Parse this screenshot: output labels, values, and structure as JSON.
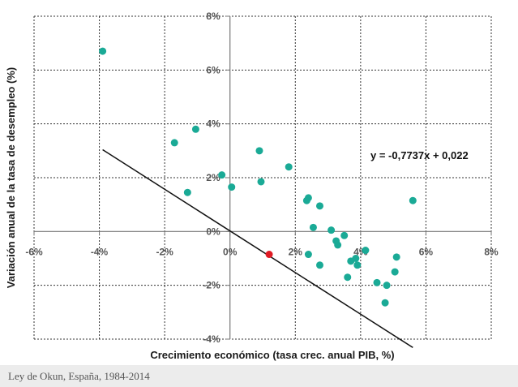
{
  "chart_data": {
    "type": "scatter",
    "xlabel": "Crecimiento económico (tasa crec. anual PIB, %)",
    "ylabel": "Variación anual de la tasa de desempleo (%)",
    "xlim": [
      -6,
      8
    ],
    "ylim": [
      -4,
      8
    ],
    "x_ticks": [
      "-6%",
      "-4%",
      "-2%",
      "0%",
      "2%",
      "4%",
      "6%",
      "8%"
    ],
    "y_ticks": [
      "-4%",
      "-2%",
      "0%",
      "2%",
      "4%",
      "6%",
      "8%"
    ],
    "grid": true,
    "trendline": {
      "label": "y = -0,7737x + 0,022",
      "slope": -0.7737,
      "intercept": 0.022,
      "x_range": [
        -3.9,
        5.6
      ]
    },
    "series": [
      {
        "color": "#1aaa96",
        "points": [
          [
            -3.9,
            6.7
          ],
          [
            -1.7,
            3.3
          ],
          [
            -1.05,
            3.8
          ],
          [
            -1.3,
            1.45
          ],
          [
            -0.25,
            2.1
          ],
          [
            0.05,
            1.65
          ],
          [
            0.9,
            3.0
          ],
          [
            0.95,
            1.85
          ],
          [
            1.8,
            2.4
          ],
          [
            2.35,
            1.15
          ],
          [
            2.4,
            1.25
          ],
          [
            2.75,
            0.95
          ],
          [
            2.55,
            0.15
          ],
          [
            2.4,
            -0.85
          ],
          [
            2.75,
            -1.25
          ],
          [
            3.1,
            0.05
          ],
          [
            3.25,
            -0.35
          ],
          [
            3.3,
            -0.5
          ],
          [
            3.5,
            -0.15
          ],
          [
            3.6,
            -1.7
          ],
          [
            3.7,
            -1.1
          ],
          [
            3.85,
            -1.0
          ],
          [
            3.9,
            -1.25
          ],
          [
            4.15,
            -0.7
          ],
          [
            4.5,
            -1.9
          ],
          [
            4.8,
            -2.0
          ],
          [
            4.75,
            -2.65
          ],
          [
            5.05,
            -1.5
          ],
          [
            5.1,
            -0.95
          ],
          [
            5.6,
            1.15
          ]
        ]
      },
      {
        "color": "#e01b24",
        "points": [
          [
            1.2,
            -0.85
          ]
        ]
      }
    ]
  },
  "caption": "Ley de Okun, España, 1984-2014"
}
